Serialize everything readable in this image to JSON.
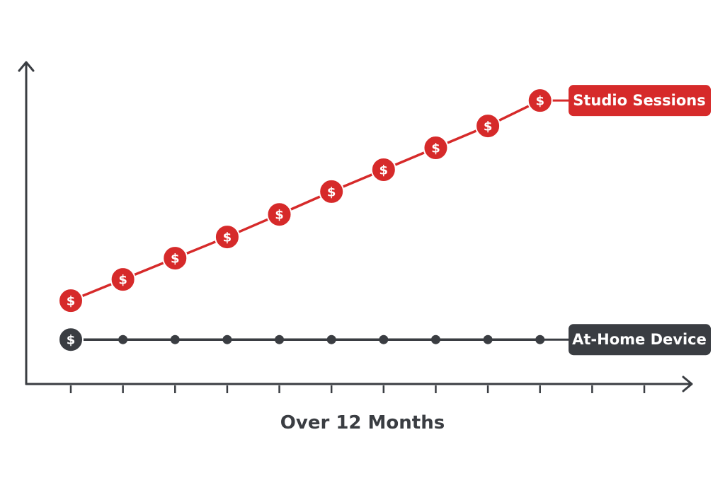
{
  "chart_data": {
    "type": "line",
    "xlabel": "Over 12 Months",
    "categories": [
      null,
      null,
      null,
      null,
      null,
      null,
      null,
      null,
      null,
      null,
      null,
      null
    ],
    "marker_symbol": "$",
    "ylim": [
      0,
      100
    ],
    "series": [
      {
        "name": "Studio Sessions",
        "color": "#d62a2a",
        "values": [
          25.9,
          32.5,
          39.1,
          45.7,
          52.7,
          59.8,
          66.6,
          73.4,
          80.2,
          88.1,
          null,
          null
        ]
      },
      {
        "name": "At-Home Device",
        "color": "#3a3d42",
        "values": [
          13.8,
          13.8,
          13.8,
          13.8,
          13.8,
          13.8,
          13.8,
          13.8,
          13.8,
          13.8,
          null,
          null
        ]
      }
    ]
  }
}
